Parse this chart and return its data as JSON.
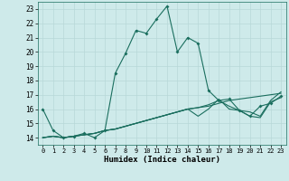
{
  "xlabel": "Humidex (Indice chaleur)",
  "ylabel": "",
  "xlim": [
    -0.5,
    23.5
  ],
  "ylim": [
    13.5,
    23.5
  ],
  "yticks": [
    14,
    15,
    16,
    17,
    18,
    19,
    20,
    21,
    22,
    23
  ],
  "xticks": [
    0,
    1,
    2,
    3,
    4,
    5,
    6,
    7,
    8,
    9,
    10,
    11,
    12,
    13,
    14,
    15,
    16,
    17,
    18,
    19,
    20,
    21,
    22,
    23
  ],
  "background_color": "#ceeaea",
  "grid_color": "#b8d8d8",
  "line_color": "#1a6e5e",
  "series": [
    [
      16.0,
      14.5,
      14.0,
      14.1,
      14.3,
      14.0,
      14.5,
      18.5,
      19.9,
      21.5,
      21.3,
      22.3,
      23.2,
      20.0,
      21.0,
      20.6,
      17.3,
      16.6,
      16.7,
      15.9,
      15.5,
      16.2,
      16.4,
      16.9
    ],
    [
      14.0,
      14.1,
      14.0,
      14.1,
      14.2,
      14.3,
      14.5,
      14.6,
      14.8,
      15.0,
      15.2,
      15.4,
      15.6,
      15.8,
      16.0,
      16.1,
      16.2,
      16.4,
      16.6,
      16.7,
      16.8,
      16.9,
      17.0,
      17.1
    ],
    [
      14.0,
      14.1,
      14.0,
      14.1,
      14.2,
      14.3,
      14.5,
      14.6,
      14.8,
      15.0,
      15.2,
      15.4,
      15.6,
      15.8,
      16.0,
      16.1,
      16.3,
      16.6,
      16.2,
      15.9,
      15.8,
      15.5,
      16.6,
      17.2
    ],
    [
      14.0,
      14.1,
      14.0,
      14.1,
      14.2,
      14.3,
      14.5,
      14.6,
      14.8,
      15.0,
      15.2,
      15.4,
      15.6,
      15.8,
      16.0,
      15.5,
      16.0,
      16.7,
      16.0,
      15.9,
      15.5,
      15.4,
      16.5,
      16.8
    ]
  ]
}
